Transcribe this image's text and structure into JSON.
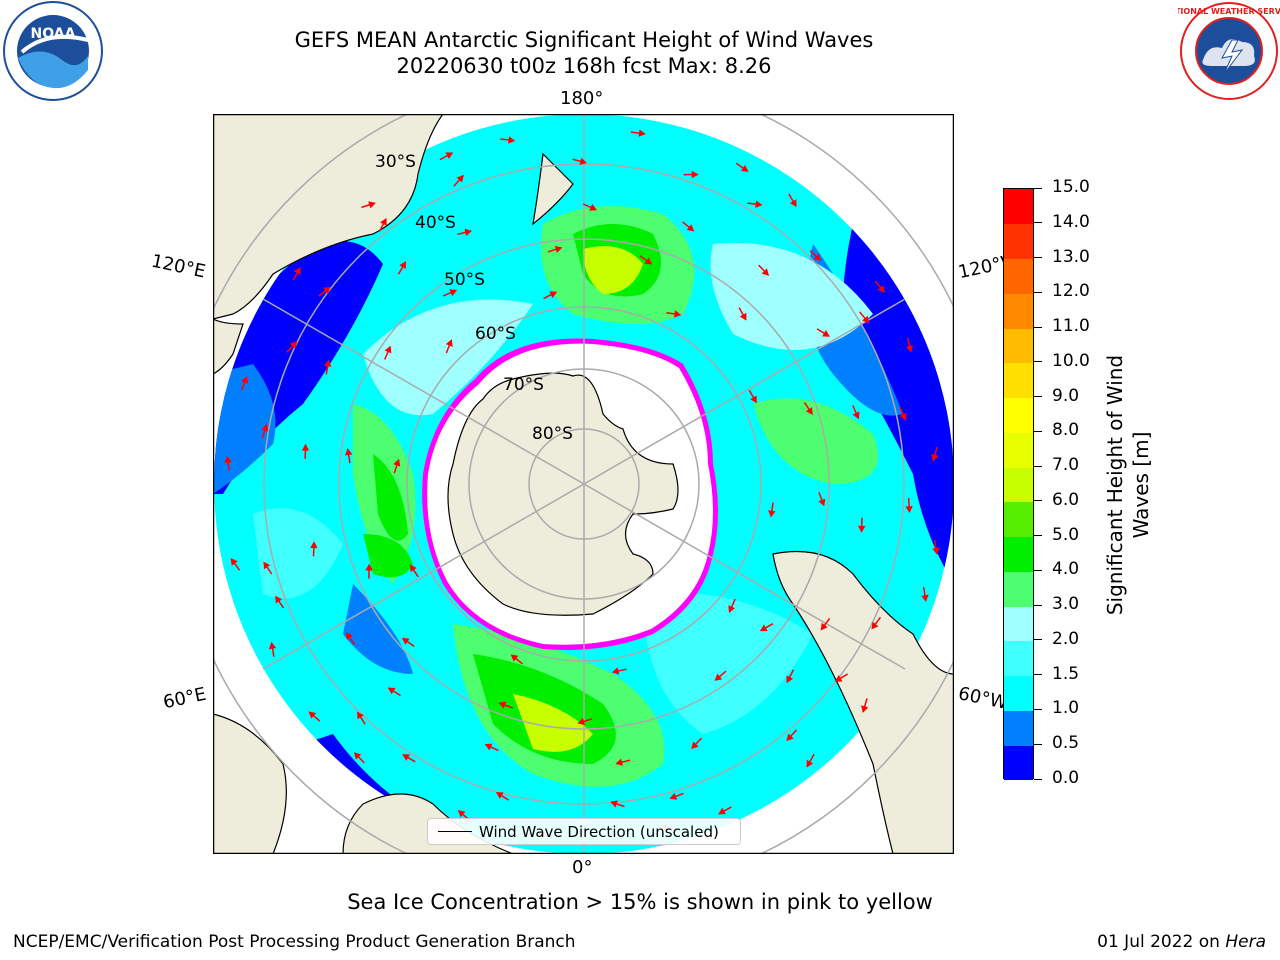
{
  "title": {
    "line1": "GEFS MEAN Antarctic Significant Height of Wind Waves",
    "line2": "20220630 t00z 168h fcst   Max: 8.26"
  },
  "logos": {
    "noaa_text": "NOAA",
    "nws_text": "NATIONAL WEATHER SERVICE"
  },
  "map": {
    "projection": "south-polar-stereographic",
    "longitude_labels": {
      "top": "180°",
      "left": "120°E",
      "right": "120°W",
      "bottom_left": "60°E",
      "bottom_right": "60°W",
      "bottom": "0°"
    },
    "latitude_labels": [
      "30°S",
      "40°S",
      "50°S",
      "60°S",
      "70°S",
      "80°S"
    ],
    "sea_ice_colors": [
      "#ff00ff",
      "#ffff00"
    ],
    "land_color": "#eeecdb",
    "ocean_colors": {
      "0.0-0.5": "#0000ff",
      "0.5-1.0": "#0080ff",
      "1.0-1.5": "#00ffff",
      "1.5-2.0": "#40ffff",
      "2.0-3.0": "#a0ffff",
      "3.0-4.0": "#4dff70",
      "4.0-5.0": "#00ee00",
      "5.0-6.0": "#55ee00",
      "6.0-7.0": "#c8ff00",
      "7.0-8.0": "#e8ff00"
    },
    "arrow_color": "#ff0000",
    "legend_label": "Wind Wave Direction (unscaled)"
  },
  "colorbar": {
    "title": "Significant Height of Wind Waves [m]",
    "ticks": [
      "0.0",
      "0.5",
      "1.0",
      "1.5",
      "2.0",
      "3.0",
      "4.0",
      "5.0",
      "6.0",
      "7.0",
      "8.0",
      "9.0",
      "10.0",
      "11.0",
      "12.0",
      "13.0",
      "14.0",
      "15.0"
    ],
    "colors": [
      "#0000ff",
      "#0080ff",
      "#00ffff",
      "#40ffff",
      "#a0ffff",
      "#4dff70",
      "#00ee00",
      "#55ee00",
      "#c8ff00",
      "#e8ff00",
      "#ffff00",
      "#ffe000",
      "#ffbb00",
      "#ff8800",
      "#ff6600",
      "#ff3300",
      "#ff0000"
    ]
  },
  "caption": "Sea Ice Concentration > 15% is shown in pink to yellow",
  "footer": {
    "left": "NCEP/EMC/Verification Post Processing Product Generation Branch",
    "right_date": "01 Jul 2022 on ",
    "right_host": "Hera"
  }
}
